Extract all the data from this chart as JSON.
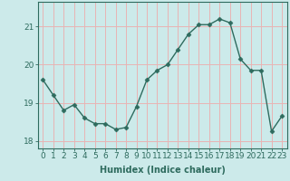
{
  "x": [
    0,
    1,
    2,
    3,
    4,
    5,
    6,
    7,
    8,
    9,
    10,
    11,
    12,
    13,
    14,
    15,
    16,
    17,
    18,
    19,
    20,
    21,
    22,
    23
  ],
  "y": [
    19.6,
    19.2,
    18.8,
    18.95,
    18.6,
    18.45,
    18.45,
    18.3,
    18.35,
    18.9,
    19.6,
    19.85,
    20.0,
    20.4,
    20.8,
    21.05,
    21.05,
    21.2,
    21.1,
    20.15,
    19.85,
    19.85,
    18.25,
    18.65
  ],
  "line_color": "#2e6b5e",
  "marker": "D",
  "markersize": 2.5,
  "linewidth": 1.0,
  "bg_color": "#cceaea",
  "grid_color": "#e8b4b4",
  "xlabel": "Humidex (Indice chaleur)",
  "xlabel_fontsize": 7,
  "ylabel_ticks": [
    18,
    19,
    20,
    21
  ],
  "xtick_labels": [
    "0",
    "1",
    "2",
    "3",
    "4",
    "5",
    "6",
    "7",
    "8",
    "9",
    "10",
    "11",
    "12",
    "13",
    "14",
    "15",
    "16",
    "17",
    "18",
    "19",
    "20",
    "21",
    "22",
    "23"
  ],
  "xlim": [
    -0.5,
    23.5
  ],
  "ylim": [
    17.8,
    21.65
  ],
  "tick_fontsize": 6.5,
  "label_color": "#2e6b5e"
}
